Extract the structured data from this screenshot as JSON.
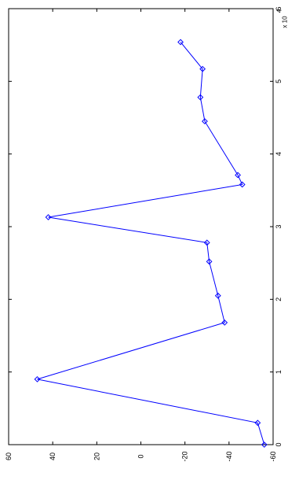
{
  "chart_data": {
    "type": "line",
    "orientation": "rotated-90-clockwise",
    "title": "",
    "xlabel": "",
    "ylabel": "",
    "xlim": [
      0,
      60000
    ],
    "ylim": [
      -60,
      60
    ],
    "x_ticks": [
      0,
      10000,
      20000,
      30000,
      40000,
      50000,
      60000
    ],
    "x_tick_labels": [
      "0",
      "1",
      "2",
      "3",
      "4",
      "5",
      "6"
    ],
    "x_multiplier_label": "x 10",
    "x_multiplier_exponent": "4",
    "y_ticks": [
      -60,
      -40,
      -20,
      0,
      20,
      40,
      60
    ],
    "y_tick_labels": [
      "-60",
      "-40",
      "-20",
      "0",
      "20",
      "40",
      "60"
    ],
    "grid": false,
    "legend": "none",
    "series": [
      {
        "color": "#0000ff",
        "marker": "diamond",
        "x": [
          0,
          3000,
          9000,
          16800,
          20500,
          25200,
          27800,
          31300,
          35800,
          37100,
          44500,
          47800,
          51700,
          55400
        ],
        "y": [
          -56,
          -53,
          47,
          -38,
          -35,
          -31,
          -30,
          42,
          -46,
          -44,
          -29,
          -27,
          -28,
          -18
        ]
      }
    ]
  }
}
